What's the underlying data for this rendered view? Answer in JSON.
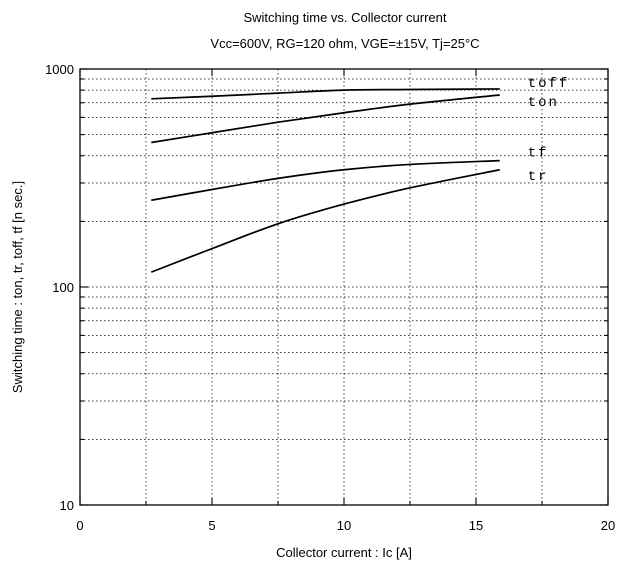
{
  "chart_data": {
    "type": "line",
    "title": "Switching time  vs. Collector current",
    "subtitle": "Vcc=600V, RG=120 ohm, VGE=±15V, Tj=25°C",
    "xlabel": "Collector  current  :  Ic [A]",
    "ylabel": "Switching  time  :  ton, tr, toff,  tf  [n sec.]",
    "xlim": [
      0,
      20
    ],
    "ylim": [
      10,
      1000
    ],
    "y_scale": "log",
    "grid": true,
    "x_ticks": [
      0,
      5,
      10,
      15,
      20
    ],
    "x_tick_labels": [
      "0",
      "5",
      "10",
      "15",
      "20"
    ],
    "y_tick_labels": [
      {
        "value": 10,
        "label": "10"
      },
      {
        "value": 100,
        "label": "100"
      },
      {
        "value": 1000,
        "label": "1000"
      }
    ],
    "series": [
      {
        "name": "toff",
        "x": [
          2.7,
          5,
          7.5,
          10,
          12.5,
          15.9
        ],
        "y": [
          730,
          750,
          775,
          800,
          805,
          810
        ]
      },
      {
        "name": "ton",
        "x": [
          2.7,
          5,
          7.5,
          10,
          12.5,
          15.9
        ],
        "y": [
          460,
          510,
          570,
          630,
          690,
          760
        ]
      },
      {
        "name": "tf",
        "x": [
          2.7,
          5,
          7.5,
          10,
          12.5,
          15.9
        ],
        "y": [
          250,
          280,
          315,
          345,
          365,
          380
        ]
      },
      {
        "name": "tr",
        "x": [
          2.7,
          5,
          7.5,
          10,
          12.5,
          15.9
        ],
        "y": [
          117,
          150,
          195,
          240,
          285,
          345
        ]
      }
    ]
  }
}
